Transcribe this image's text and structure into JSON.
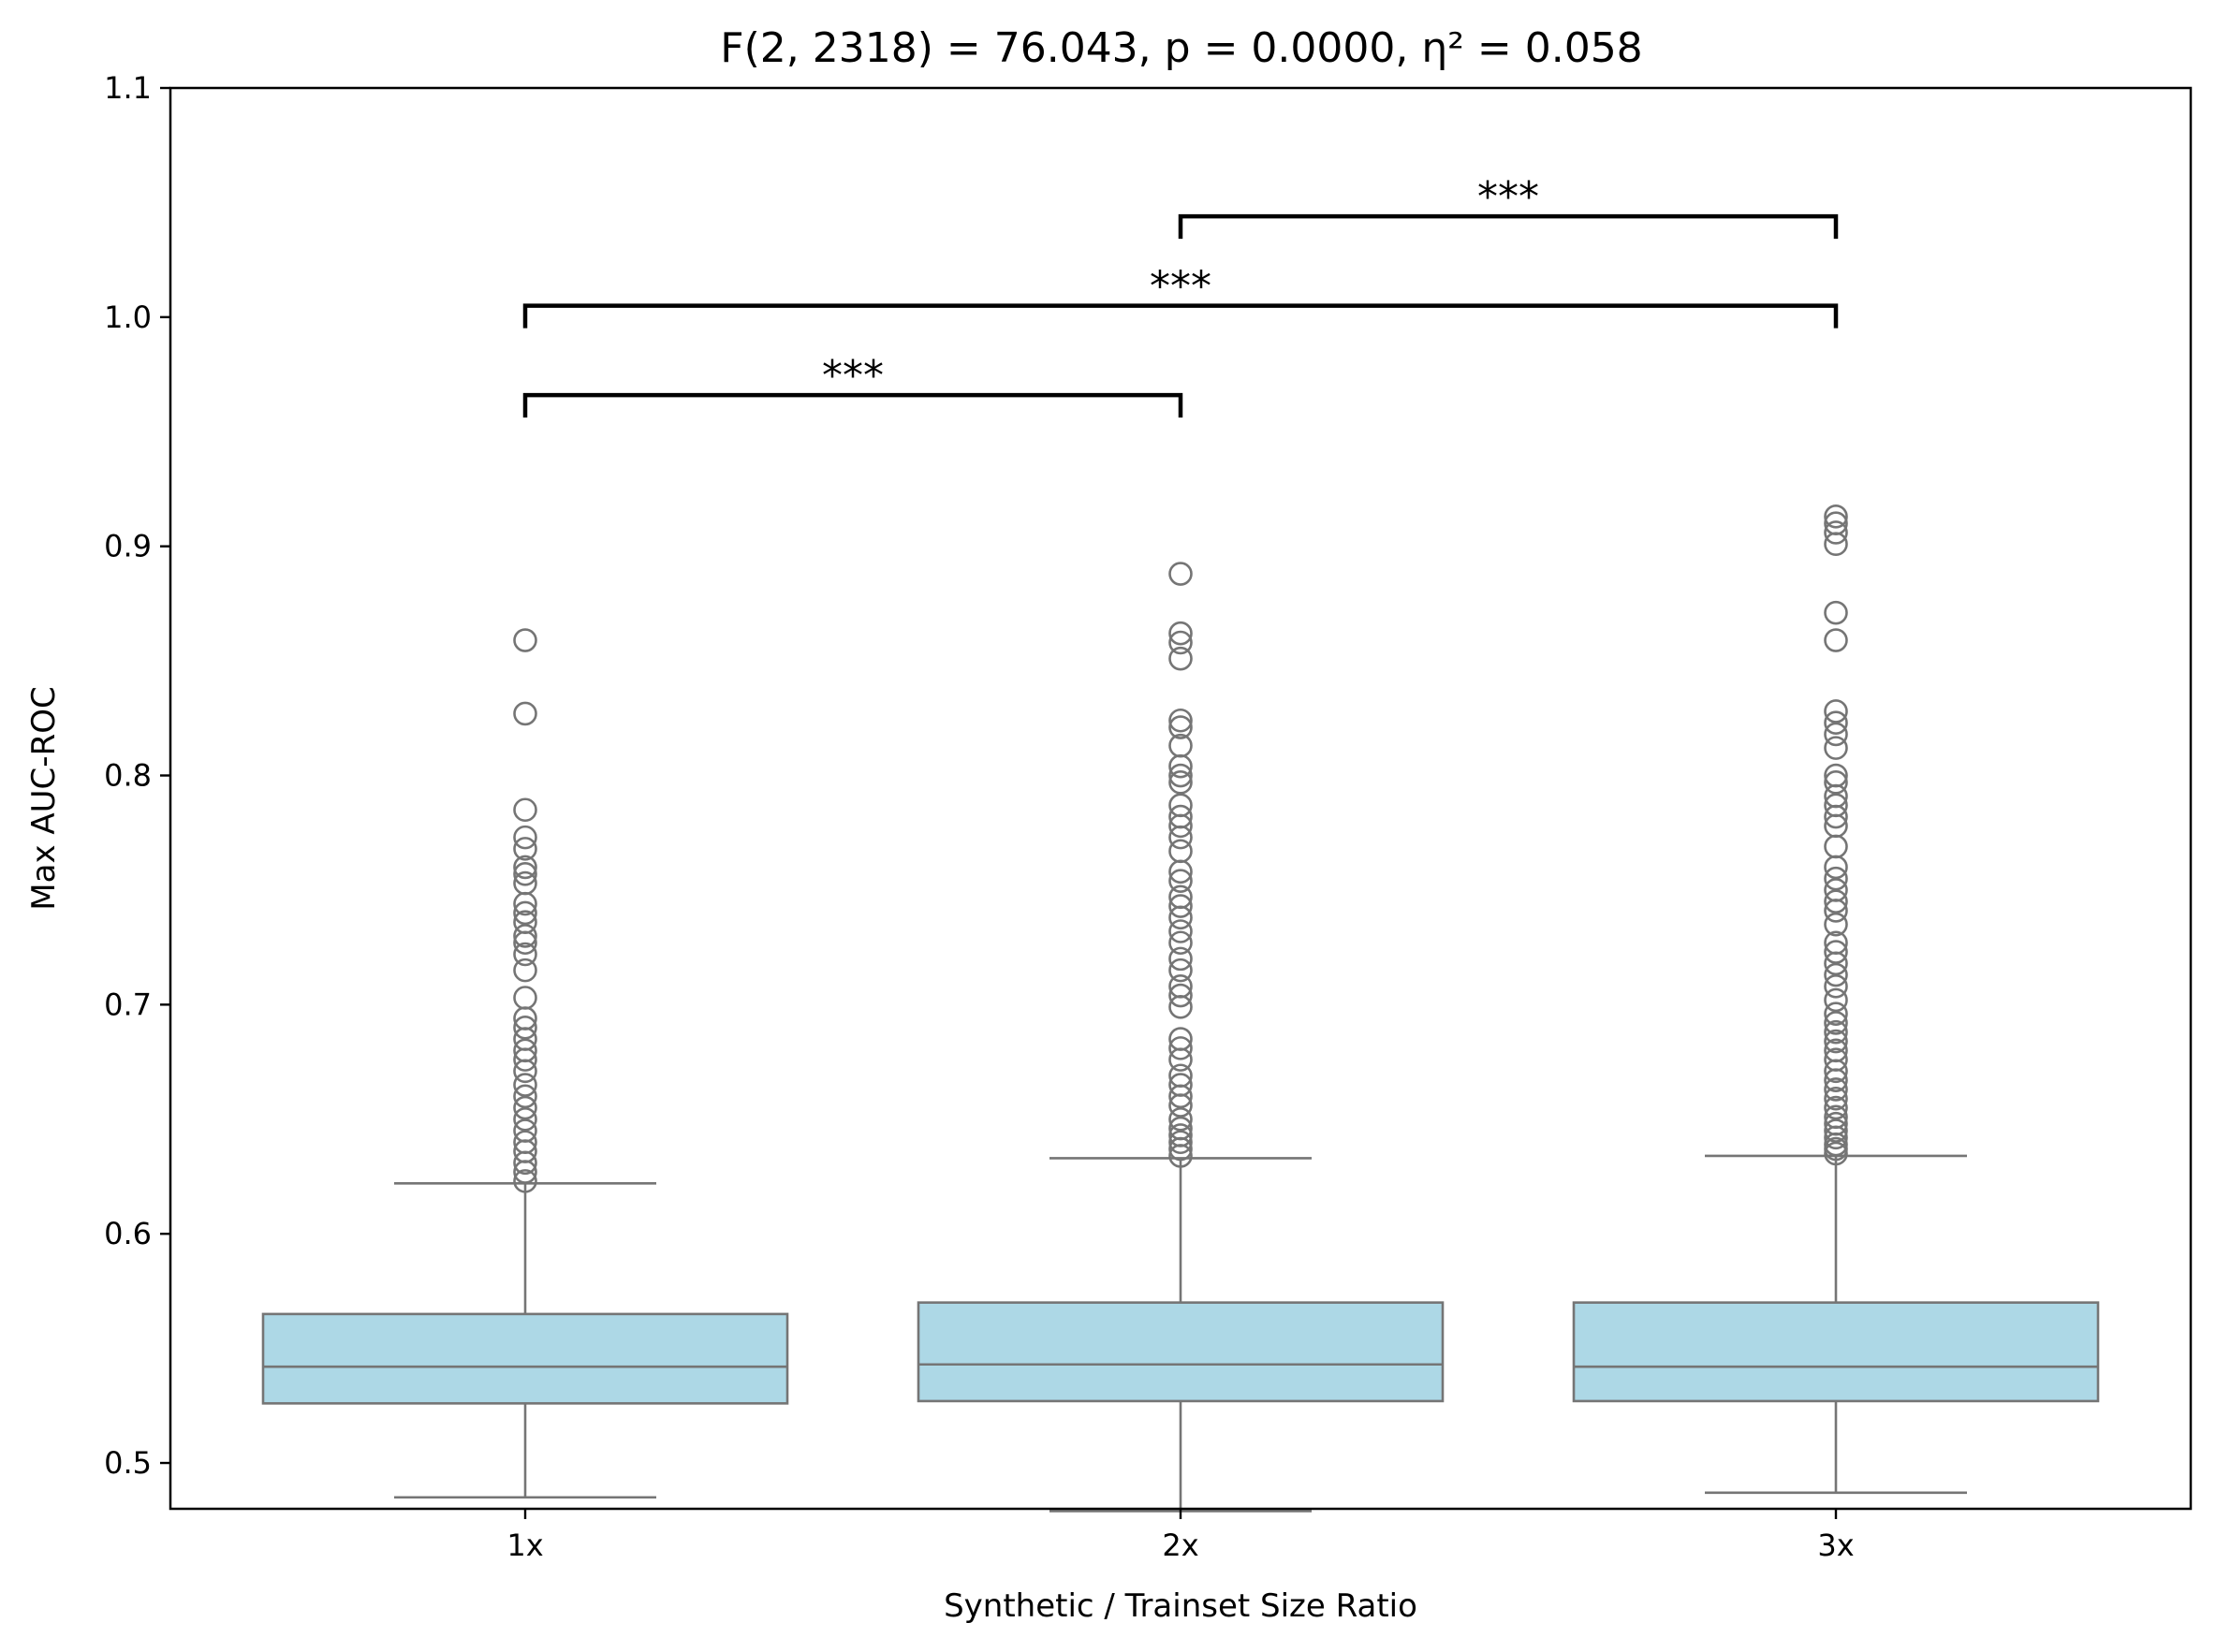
{
  "chart_data": {
    "type": "box",
    "title": "F(2, 2318) = 76.043, p = 0.0000, η² = 0.058",
    "xlabel": "Synthetic / Trainset Size Ratio",
    "ylabel": "Max AUC-ROC",
    "ylim": [
      0.48,
      1.1
    ],
    "yticks": [
      "0.5",
      "0.6",
      "0.7",
      "0.8",
      "0.9",
      "1.0",
      "1.1"
    ],
    "categories": [
      "1x",
      "2x",
      "3x"
    ],
    "box_color": "#add8e6",
    "line_color": "#757575",
    "boxes": [
      {
        "category": "1x",
        "whisker_low": 0.485,
        "q1": 0.526,
        "median": 0.542,
        "q3": 0.565,
        "whisker_high": 0.622,
        "outliers": [
          0.859,
          0.827,
          0.785,
          0.773,
          0.768,
          0.76,
          0.757,
          0.753,
          0.744,
          0.74,
          0.736,
          0.73,
          0.727,
          0.722,
          0.715,
          0.703,
          0.694,
          0.69,
          0.685,
          0.68,
          0.676,
          0.671,
          0.665,
          0.66,
          0.655,
          0.65,
          0.645,
          0.64,
          0.636,
          0.631,
          0.627,
          0.623
        ]
      },
      {
        "category": "2x",
        "whisker_low": 0.479,
        "q1": 0.527,
        "median": 0.543,
        "q3": 0.57,
        "whisker_high": 0.633,
        "outliers": [
          0.888,
          0.862,
          0.858,
          0.851,
          0.824,
          0.821,
          0.813,
          0.804,
          0.8,
          0.797,
          0.787,
          0.782,
          0.778,
          0.773,
          0.767,
          0.758,
          0.754,
          0.747,
          0.743,
          0.738,
          0.732,
          0.727,
          0.72,
          0.715,
          0.708,
          0.704,
          0.699,
          0.685,
          0.681,
          0.676,
          0.669,
          0.665,
          0.66,
          0.656,
          0.65,
          0.646,
          0.643,
          0.64,
          0.637,
          0.634
        ]
      },
      {
        "category": "3x",
        "whisker_low": 0.487,
        "q1": 0.527,
        "median": 0.542,
        "q3": 0.57,
        "whisker_high": 0.634,
        "outliers": [
          0.913,
          0.91,
          0.906,
          0.901,
          0.871,
          0.859,
          0.828,
          0.823,
          0.818,
          0.812,
          0.8,
          0.797,
          0.791,
          0.787,
          0.782,
          0.778,
          0.769,
          0.76,
          0.755,
          0.75,
          0.745,
          0.741,
          0.735,
          0.727,
          0.723,
          0.718,
          0.713,
          0.708,
          0.702,
          0.696,
          0.692,
          0.688,
          0.684,
          0.68,
          0.676,
          0.671,
          0.667,
          0.663,
          0.659,
          0.655,
          0.651,
          0.648,
          0.645,
          0.642,
          0.639,
          0.637,
          0.635
        ]
      }
    ],
    "significance": [
      {
        "from": "1x",
        "to": "2x",
        "level": 0.966,
        "label": "***"
      },
      {
        "from": "1x",
        "to": "3x",
        "level": 1.005,
        "label": "***"
      },
      {
        "from": "2x",
        "to": "3x",
        "level": 1.044,
        "label": "***"
      }
    ],
    "grid": false,
    "legend": "none"
  }
}
